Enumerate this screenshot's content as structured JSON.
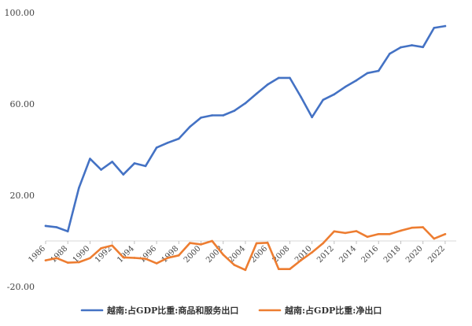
{
  "chart_data": {
    "type": "line",
    "title": "",
    "xlabel": "",
    "ylabel": "",
    "ylim": [
      -20,
      100
    ],
    "y_ticks": [
      "100.00",
      "60.00",
      "20.00",
      "-20.00"
    ],
    "grid": false,
    "legend_position": "bottom",
    "x": [
      1986,
      1987,
      1988,
      1989,
      1990,
      1991,
      1992,
      1993,
      1994,
      1995,
      1996,
      1997,
      1998,
      1999,
      2000,
      2001,
      2002,
      2003,
      2004,
      2005,
      2006,
      2007,
      2008,
      2009,
      2010,
      2011,
      2012,
      2013,
      2014,
      2015,
      2016,
      2017,
      2018,
      2019,
      2020,
      2021,
      2022,
      2023
    ],
    "x_tick_labels": [
      "1986",
      "1988",
      "1990",
      "1992",
      "1994",
      "1996",
      "1998",
      "2000",
      "2002",
      "2004",
      "2006",
      "2008",
      "2010",
      "2012",
      "2014",
      "2016",
      "2018",
      "2020",
      "2022"
    ],
    "series": [
      {
        "name": "越南:占GDP比重:商品和服务出口",
        "color": "#4472C4",
        "values": [
          6.6,
          6.0,
          4.2,
          23.2,
          36.0,
          31.2,
          34.7,
          29.1,
          34.0,
          32.8,
          40.9,
          43.0,
          44.8,
          50.0,
          54.0,
          55.0,
          55.0,
          57.0,
          60.3,
          64.5,
          68.5,
          71.4,
          71.4,
          63.1,
          54.2,
          61.8,
          64.2,
          67.5,
          70.3,
          73.5,
          74.5,
          82.0,
          84.8,
          85.7,
          84.9,
          93.3,
          94.1,
          null
        ]
      },
      {
        "name": "越南:占GDP比重:净出口",
        "color": "#ED7D31",
        "values": [
          -8.5,
          -7.5,
          -9.5,
          -9.3,
          -7.5,
          -3.2,
          -2.0,
          -7.2,
          -7.4,
          -7.8,
          -9.8,
          -7.4,
          -6.3,
          -0.9,
          -1.5,
          0.0,
          -6.0,
          -10.5,
          -12.7,
          -1.0,
          -0.8,
          -12.3,
          -12.3,
          -8.5,
          -5.0,
          -1.0,
          4.2,
          3.5,
          4.3,
          1.8,
          3.0,
          3.0,
          4.5,
          5.8,
          6.0,
          1.0,
          3.0,
          null
        ]
      }
    ]
  }
}
